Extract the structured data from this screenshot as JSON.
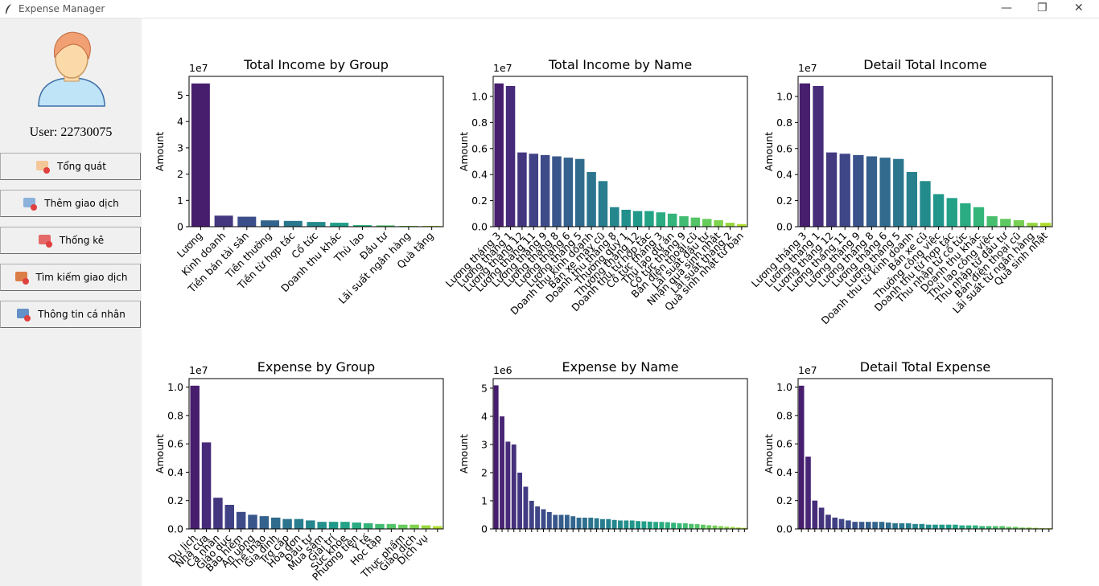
{
  "window": {
    "title": "Expense Manager"
  },
  "sidebar": {
    "user": "User: 22730075",
    "buttons": [
      "Tổng quát",
      "Thêm giao dịch",
      "Thống kê",
      "Tìm kiếm giao dịch",
      "Thông tin cá nhân"
    ]
  },
  "chart_data": [
    {
      "type": "bar",
      "title": "Total Income by Group",
      "ylabel": "Amount",
      "offset_text": "1e7",
      "colormap": "viridis",
      "categories": [
        "Lương",
        "Kinh doanh",
        "Tiền bán tài sản",
        "Tiền thưởng",
        "Tiền từ hợp tác",
        "Cổ tức",
        "Doanh thu khác",
        "Thù lao",
        "Đầu tư",
        "Lãi suất ngân hàng",
        "Quà tặng"
      ],
      "values": [
        5.45,
        0.42,
        0.38,
        0.24,
        0.22,
        0.18,
        0.15,
        0.06,
        0.05,
        0.03,
        0.03
      ],
      "ylim": [
        0,
        5.72
      ],
      "yticks": [
        0,
        1,
        2,
        3,
        4,
        5
      ]
    },
    {
      "type": "bar",
      "title": "Total Income by Name",
      "ylabel": "Amount",
      "offset_text": "1e7",
      "colormap": "viridis",
      "categories": [
        "Lương tháng 3",
        "Lương tháng 1",
        "Lương tháng 12",
        "Lương tháng 11",
        "Lương tháng 9",
        "Lương tháng 8",
        "Lương tháng 6",
        "Lương tháng 5",
        "Doanh thu kinh doanh",
        "Bán xe máy cũ",
        "Doanh thu tháng 8",
        "Thưởng quý 1",
        "Thưởng tháng 12",
        "Doanh thu từ hợp tác",
        "Cổ tức tháng 3",
        "Thù lao dự án",
        "Cổ tức tháng 9",
        "Bán điện thoại cũ",
        "Lãi suất đầu tư",
        "Nhận quà sinh nhật",
        "Lãi suất tháng 2",
        "Quà sinh nhật từ bạn"
      ],
      "values": [
        1.1,
        1.08,
        0.57,
        0.56,
        0.55,
        0.54,
        0.53,
        0.52,
        0.42,
        0.35,
        0.15,
        0.13,
        0.12,
        0.12,
        0.11,
        0.1,
        0.08,
        0.07,
        0.06,
        0.05,
        0.03,
        0.02
      ],
      "ylim": [
        0,
        1.154
      ],
      "yticks": [
        {
          "value": 0,
          "label": "0.0"
        },
        0.2,
        0.4,
        0.6,
        0.8,
        {
          "value": 1,
          "label": "1.0"
        }
      ]
    },
    {
      "type": "bar",
      "title": "Detail Total Income",
      "ylabel": "Amount",
      "offset_text": "1e7",
      "colormap": "viridis",
      "categories": [
        "Lương tháng 3",
        "Lương tháng 1",
        "Lương tháng 12",
        "Lương tháng 11",
        "Lương tháng 9",
        "Lương tháng 8",
        "Lương tháng 6",
        "Lương tháng 5",
        "Doanh thu từ kinh doanh",
        "Bán xe cũ",
        "Thưởng công việc",
        "Doanh thu từ hợp tác",
        "Thu nhập từ cổ tức",
        "Doanh thu khác",
        "Thù lao công việc",
        "Thu nhập từ đầu tư",
        "Bán điện thoại cũ",
        "Lãi suất từ ngân hàng",
        "Quà sinh nhật"
      ],
      "values": [
        1.1,
        1.08,
        0.57,
        0.56,
        0.55,
        0.54,
        0.53,
        0.52,
        0.42,
        0.35,
        0.25,
        0.22,
        0.18,
        0.15,
        0.08,
        0.06,
        0.05,
        0.03,
        0.03
      ],
      "ylim": [
        0,
        1.154
      ],
      "yticks": [
        {
          "value": 0,
          "label": "0.0"
        },
        0.2,
        0.4,
        0.6,
        0.8,
        {
          "value": 1,
          "label": "1.0"
        }
      ]
    },
    {
      "type": "bar",
      "title": "Expense by Group",
      "ylabel": "Amount",
      "offset_text": "1e7",
      "colormap": "viridis",
      "categories": [
        "Du lịch",
        "Nhà cửa",
        "Cá nhân",
        "Giáo dục",
        "Bảo hiểm",
        "Ăn uống",
        "Thể thao",
        "Gia đình",
        "Trợ cấp",
        "Hóa đơn",
        "Đầu tư",
        "Mua sắm",
        "Giải trí",
        "Sức khỏe",
        "Phương tiện",
        "Y tế",
        "Học tập",
        null,
        "Thực phẩm",
        "Giao dịch",
        "Dịch vụ",
        null
      ],
      "values": [
        1.01,
        0.61,
        0.22,
        0.17,
        0.12,
        0.1,
        0.09,
        0.08,
        0.07,
        0.07,
        0.06,
        0.05,
        0.05,
        0.05,
        0.045,
        0.04,
        0.035,
        0.035,
        0.03,
        0.03,
        0.025,
        0.02
      ],
      "ylim": [
        0,
        1.06
      ],
      "yticks": [
        {
          "value": 0,
          "label": "0.0"
        },
        0.2,
        0.4,
        0.6,
        0.8,
        {
          "value": 1,
          "label": "1.0"
        }
      ]
    },
    {
      "type": "bar",
      "title": "Expense by Name",
      "ylabel": "Amount",
      "offset_text": "1e6",
      "colormap": "viridis",
      "categories": [
        null,
        null,
        null,
        null,
        null,
        null,
        null,
        null,
        null,
        null,
        null,
        null,
        null,
        null,
        null,
        null,
        null,
        null,
        null,
        null,
        null,
        null,
        null,
        null,
        null,
        null,
        null,
        null,
        null,
        null,
        null,
        null,
        null,
        null,
        null,
        null,
        null,
        null,
        null,
        null,
        null,
        null,
        null
      ],
      "values": [
        5.1,
        4.0,
        3.1,
        3.0,
        2.0,
        1.5,
        1.0,
        0.8,
        0.7,
        0.6,
        0.5,
        0.5,
        0.5,
        0.45,
        0.4,
        0.4,
        0.4,
        0.38,
        0.35,
        0.35,
        0.32,
        0.3,
        0.3,
        0.3,
        0.28,
        0.27,
        0.26,
        0.25,
        0.25,
        0.24,
        0.22,
        0.2,
        0.2,
        0.18,
        0.17,
        0.15,
        0.13,
        0.12,
        0.1,
        0.08,
        0.07,
        0.05,
        0.04
      ],
      "ylim": [
        0,
        5.34
      ],
      "yticks": [
        0,
        1,
        2,
        3,
        4,
        5
      ]
    },
    {
      "type": "bar",
      "title": "Detail Total Expense",
      "ylabel": "Amount",
      "offset_text": "1e7",
      "colormap": "viridis",
      "categories": [
        null,
        null,
        null,
        null,
        null,
        null,
        null,
        null,
        null,
        null,
        null,
        null,
        null,
        null,
        null,
        null,
        null,
        null,
        null,
        null,
        null,
        null,
        null,
        null,
        null,
        null,
        null,
        null,
        null,
        null,
        null,
        null,
        null,
        null,
        null,
        null,
        null,
        null
      ],
      "values": [
        1.01,
        0.51,
        0.2,
        0.15,
        0.1,
        0.08,
        0.07,
        0.06,
        0.05,
        0.05,
        0.05,
        0.05,
        0.05,
        0.045,
        0.04,
        0.04,
        0.04,
        0.035,
        0.035,
        0.03,
        0.03,
        0.03,
        0.03,
        0.03,
        0.025,
        0.025,
        0.025,
        0.02,
        0.02,
        0.02,
        0.02,
        0.015,
        0.015,
        0.01,
        0.01,
        0.008,
        0.005,
        0.005
      ],
      "ylim": [
        0,
        1.06
      ],
      "yticks": [
        {
          "value": 0,
          "label": "0.0"
        },
        0.2,
        0.4,
        0.6,
        0.8,
        {
          "value": 1,
          "label": "1.0"
        }
      ]
    }
  ]
}
